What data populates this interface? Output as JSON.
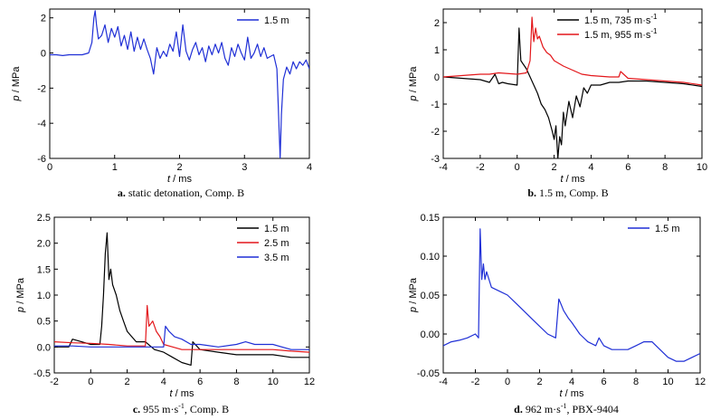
{
  "chart_data": [
    {
      "id": "a",
      "type": "line",
      "caption_letter": "a.",
      "caption_text": "static detonation, Comp. B",
      "xlabel_var": "t",
      "xlabel_unit": " / ms",
      "ylabel_var": "p",
      "ylabel_unit": " / MPa",
      "xlim": [
        0,
        4
      ],
      "ylim": [
        -6,
        2.5
      ],
      "xticks": [
        0,
        1,
        2,
        3,
        4
      ],
      "xtick_labels": [
        "0",
        "1",
        "2",
        "3",
        "4"
      ],
      "yticks": [
        -6,
        -4,
        -2,
        0,
        2
      ],
      "ytick_labels": [
        "-6",
        "-4",
        "-2",
        "0",
        "2"
      ],
      "legend_position": "top-right",
      "series": [
        {
          "name": "1.5 m",
          "color": "#1f2fd6",
          "x": [
            0,
            0.1,
            0.2,
            0.3,
            0.4,
            0.5,
            0.55,
            0.6,
            0.65,
            0.68,
            0.7,
            0.72,
            0.75,
            0.8,
            0.85,
            0.9,
            0.95,
            1.0,
            1.05,
            1.1,
            1.15,
            1.2,
            1.25,
            1.3,
            1.35,
            1.4,
            1.45,
            1.5,
            1.55,
            1.6,
            1.62,
            1.65,
            1.7,
            1.75,
            1.8,
            1.85,
            1.9,
            1.95,
            2.0,
            2.05,
            2.1,
            2.15,
            2.2,
            2.25,
            2.3,
            2.35,
            2.4,
            2.45,
            2.5,
            2.55,
            2.6,
            2.65,
            2.7,
            2.75,
            2.8,
            2.85,
            2.9,
            2.95,
            3.0,
            3.05,
            3.1,
            3.15,
            3.2,
            3.25,
            3.3,
            3.35,
            3.4,
            3.45,
            3.5,
            3.52,
            3.55,
            3.57,
            3.6,
            3.65,
            3.7,
            3.75,
            3.8,
            3.85,
            3.9,
            3.95,
            4.0
          ],
          "y": [
            -0.1,
            -0.1,
            -0.15,
            -0.1,
            -0.1,
            -0.1,
            -0.05,
            0,
            0.6,
            2.0,
            2.4,
            1.6,
            0.8,
            1.0,
            1.6,
            0.6,
            1.4,
            0.9,
            1.5,
            0.4,
            1.0,
            0.2,
            1.2,
            0.1,
            0.9,
            0.2,
            0.8,
            0.2,
            -0.3,
            -1.2,
            -0.6,
            0.3,
            -0.3,
            0.1,
            -0.2,
            0.5,
            0.1,
            1.2,
            -0.2,
            1.6,
            0.1,
            -0.4,
            0.2,
            0.6,
            -0.1,
            0.3,
            -0.5,
            0.4,
            -0.1,
            0.5,
            0.0,
            0.6,
            -0.3,
            -0.7,
            0.3,
            -0.2,
            0.5,
            0.0,
            -0.4,
            0.9,
            -0.3,
            0.0,
            0.5,
            -0.2,
            0.3,
            -0.3,
            -0.2,
            -0.1,
            -0.9,
            -3.0,
            -6.0,
            -3.5,
            -1.5,
            -0.8,
            -1.2,
            -0.5,
            -0.9,
            -0.5,
            -0.7,
            -0.4,
            -0.9
          ]
        }
      ]
    },
    {
      "id": "b",
      "type": "line",
      "caption_letter": "b.",
      "caption_text": "1.5 m, Comp. B",
      "xlabel_var": "t",
      "xlabel_unit": " / ms",
      "ylabel_var": "p",
      "ylabel_unit": " / MPa",
      "xlim": [
        -4,
        10
      ],
      "ylim": [
        -3,
        2.5
      ],
      "xticks": [
        -4,
        -2,
        0,
        2,
        4,
        6,
        8,
        10
      ],
      "xtick_labels": [
        "-4",
        "-2",
        "0",
        "2",
        "4",
        "6",
        "8",
        "10"
      ],
      "yticks": [
        -3,
        -2,
        -1,
        0,
        1,
        2
      ],
      "ytick_labels": [
        "-3",
        "-2",
        "-1",
        "0",
        "1",
        "2"
      ],
      "legend_position": "top-right",
      "series": [
        {
          "name": "1.5 m, 735 m·s",
          "name_sup": "-1",
          "color": "#000000",
          "x": [
            -4,
            -3,
            -2,
            -1.5,
            -1.2,
            -1.0,
            -0.8,
            -0.5,
            0,
            0.1,
            0.2,
            0.3,
            0.4,
            0.5,
            0.7,
            0.9,
            1.1,
            1.3,
            1.5,
            1.7,
            1.9,
            2.0,
            2.1,
            2.2,
            2.3,
            2.4,
            2.5,
            2.6,
            2.8,
            3.0,
            3.2,
            3.4,
            3.6,
            3.8,
            4.0,
            4.5,
            5.0,
            5.5,
            6.0,
            7.0,
            8.0,
            9.0,
            10
          ],
          "y": [
            0,
            -0.05,
            -0.1,
            -0.2,
            0.1,
            -0.25,
            -0.2,
            -0.25,
            -0.3,
            1.8,
            0.6,
            0.5,
            0.4,
            0.3,
            0,
            -0.3,
            -0.6,
            -1.0,
            -1.2,
            -1.5,
            -2.0,
            -2.3,
            -1.8,
            -3.0,
            -2.2,
            -2.5,
            -1.3,
            -1.8,
            -0.9,
            -1.5,
            -0.7,
            -1.1,
            -0.4,
            -0.6,
            -0.3,
            -0.3,
            -0.2,
            -0.2,
            -0.15,
            -0.15,
            -0.2,
            -0.25,
            -0.35
          ]
        },
        {
          "name": "1.5 m, 955 m·s",
          "name_sup": "-1",
          "color": "#e3171b",
          "x": [
            -4,
            -3,
            -2,
            -1.5,
            -1,
            0,
            0.5,
            0.7,
            0.8,
            0.9,
            1.0,
            1.1,
            1.2,
            1.4,
            1.6,
            1.8,
            2.0,
            2.5,
            3.0,
            3.5,
            4.0,
            5.0,
            5.5,
            5.6,
            6.0,
            7.0,
            8.0,
            9.0,
            10
          ],
          "y": [
            0,
            0.05,
            0.1,
            0.1,
            0.15,
            0.1,
            0.15,
            0.6,
            2.2,
            1.3,
            1.8,
            1.4,
            1.5,
            1.1,
            0.9,
            0.8,
            0.6,
            0.4,
            0.25,
            0.1,
            0.05,
            0.0,
            0.0,
            0.2,
            -0.05,
            -0.1,
            -0.15,
            -0.2,
            -0.3
          ]
        }
      ]
    },
    {
      "id": "c",
      "type": "line",
      "caption_letter": "c.",
      "caption_text": "955 m·s",
      "caption_sup": "-1",
      "caption_tail": ", Comp. B",
      "xlabel_var": "t",
      "xlabel_unit": " / ms",
      "ylabel_var": "p",
      "ylabel_unit": " / MPa",
      "xlim": [
        -2,
        12
      ],
      "ylim": [
        -0.5,
        2.5
      ],
      "xticks": [
        -2,
        0,
        2,
        4,
        6,
        8,
        10,
        12
      ],
      "xtick_labels": [
        "-2",
        "0",
        "2",
        "4",
        "6",
        "8",
        "10",
        "12"
      ],
      "yticks": [
        -0.5,
        0.0,
        0.5,
        1.0,
        1.5,
        2.0,
        2.5
      ],
      "ytick_labels": [
        "-0.5",
        "0.0",
        "0.5",
        "1.0",
        "1.5",
        "2.0",
        "2.5"
      ],
      "legend_position": "top-right",
      "series": [
        {
          "name": "1.5 m",
          "color": "#000000",
          "x": [
            -2,
            -1.5,
            -1.2,
            -1.0,
            -0.5,
            0,
            0.5,
            0.6,
            0.7,
            0.8,
            0.9,
            1.0,
            1.1,
            1.2,
            1.4,
            1.6,
            1.8,
            2.0,
            2.5,
            3.0,
            3.5,
            4.0,
            4.5,
            5.0,
            5.5,
            5.6,
            6.0,
            7.0,
            8.0,
            9.0,
            10,
            11,
            12
          ],
          "y": [
            0,
            0.0,
            0.0,
            0.15,
            0.1,
            0.05,
            0.05,
            0.4,
            1.0,
            1.8,
            2.2,
            1.3,
            1.5,
            1.2,
            1.0,
            0.7,
            0.5,
            0.3,
            0.1,
            0.1,
            -0.05,
            -0.1,
            -0.2,
            -0.3,
            -0.35,
            0.1,
            -0.05,
            -0.1,
            -0.15,
            -0.15,
            -0.15,
            -0.2,
            -0.2
          ]
        },
        {
          "name": "2.5 m",
          "color": "#e3171b",
          "x": [
            -2,
            -1,
            0,
            1,
            2,
            3.0,
            3.1,
            3.2,
            3.4,
            3.6,
            3.8,
            4.0,
            4.5,
            5.0,
            6.0,
            7.0,
            8.0,
            9.0,
            10,
            11,
            12
          ],
          "y": [
            0.1,
            0.08,
            0.07,
            0.05,
            0.02,
            0.02,
            0.8,
            0.4,
            0.5,
            0.3,
            0.2,
            0.05,
            0.0,
            -0.05,
            -0.05,
            -0.05,
            -0.05,
            -0.05,
            -0.05,
            -0.08,
            -0.1
          ]
        },
        {
          "name": "3.5 m",
          "color": "#1f2fd6",
          "x": [
            -2,
            -1,
            0,
            1,
            2,
            3,
            4.0,
            4.1,
            4.3,
            4.6,
            5.0,
            5.5,
            6.0,
            7.0,
            8.0,
            8.5,
            9.0,
            10,
            11,
            12
          ],
          "y": [
            0.02,
            0.02,
            0.0,
            0.0,
            0.0,
            0.0,
            0.0,
            0.4,
            0.3,
            0.2,
            0.15,
            0.05,
            0.05,
            0.0,
            0.05,
            0.1,
            0.05,
            0.05,
            -0.05,
            -0.05
          ]
        }
      ]
    },
    {
      "id": "d",
      "type": "line",
      "caption_letter": "d.",
      "caption_text": "962 m·s",
      "caption_sup": "-1",
      "caption_tail": ", PBX-9404",
      "xlabel_var": "t",
      "xlabel_unit": " / ms",
      "ylabel_var": "p",
      "ylabel_unit": " / MPa",
      "xlim": [
        -4,
        12
      ],
      "ylim": [
        -0.05,
        0.15
      ],
      "xticks": [
        -4,
        -2,
        0,
        2,
        4,
        6,
        8,
        10,
        12
      ],
      "xtick_labels": [
        "-4",
        "-2",
        "0",
        "2",
        "4",
        "6",
        "8",
        "10",
        "12"
      ],
      "yticks": [
        -0.05,
        0.0,
        0.05,
        0.1,
        0.15
      ],
      "ytick_labels": [
        "-0.05",
        "0.00",
        "0.05",
        "0.10",
        "0.15"
      ],
      "legend_position": "top-right",
      "series": [
        {
          "name": "1.5 m",
          "color": "#1f2fd6",
          "x": [
            -4,
            -3.5,
            -3,
            -2.5,
            -2,
            -1.8,
            -1.7,
            -1.6,
            -1.5,
            -1.4,
            -1.3,
            -1.0,
            -0.5,
            0,
            0.5,
            1.0,
            1.5,
            2.0,
            2.5,
            3.0,
            3.2,
            3.3,
            3.5,
            3.8,
            4.0,
            4.5,
            5.0,
            5.5,
            5.7,
            6.0,
            6.5,
            7.0,
            7.5,
            8.0,
            8.5,
            9.0,
            9.5,
            10,
            10.5,
            11,
            11.5,
            12
          ],
          "y": [
            -0.015,
            -0.01,
            -0.008,
            -0.005,
            0.0,
            -0.005,
            0.135,
            0.07,
            0.09,
            0.07,
            0.08,
            0.06,
            0.055,
            0.05,
            0.04,
            0.03,
            0.02,
            0.01,
            0.0,
            -0.005,
            0.045,
            0.04,
            0.03,
            0.02,
            0.015,
            0.0,
            -0.01,
            -0.015,
            -0.005,
            -0.015,
            -0.02,
            -0.02,
            -0.02,
            -0.015,
            -0.01,
            -0.01,
            -0.02,
            -0.03,
            -0.035,
            -0.035,
            -0.03,
            -0.025
          ]
        }
      ]
    }
  ]
}
